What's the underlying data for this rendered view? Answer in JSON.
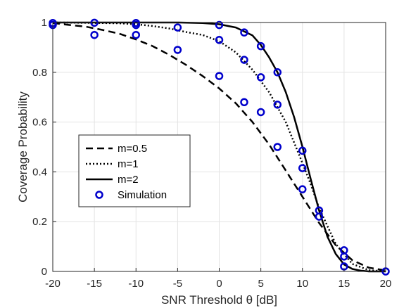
{
  "chart_data": {
    "type": "line",
    "title": "",
    "xlabel": "SNR Threshold θ [dB]",
    "ylabel": "Coverage Probability",
    "xlim": [
      -20,
      20
    ],
    "ylim": [
      0,
      1
    ],
    "x_ticks": [
      -20,
      -15,
      -10,
      -5,
      0,
      5,
      10,
      15,
      20
    ],
    "x_tick_labels": [
      "-20",
      "-15",
      "-10",
      "-5",
      "0",
      "5",
      "10",
      "15",
      "20"
    ],
    "y_ticks": [
      0,
      0.2,
      0.4,
      0.6,
      0.8,
      1
    ],
    "y_tick_labels": [
      "0",
      "0.2",
      "0.4",
      "0.6",
      "0.8",
      "1"
    ],
    "grid": true,
    "legend_position": "center-left",
    "series": [
      {
        "name": "m=0.5",
        "style": "dashed",
        "color": "#000000",
        "x": [
          -20,
          -18,
          -16,
          -14,
          -12,
          -10,
          -8,
          -6,
          -4,
          -2,
          0,
          2,
          4,
          6,
          8,
          10,
          12,
          14,
          16,
          18,
          20
        ],
        "y": [
          0.998,
          0.99,
          0.983,
          0.97,
          0.955,
          0.932,
          0.905,
          0.87,
          0.83,
          0.785,
          0.735,
          0.675,
          0.6,
          0.51,
          0.405,
          0.3,
          0.195,
          0.105,
          0.045,
          0.015,
          0.004
        ]
      },
      {
        "name": "m=1",
        "style": "dotted",
        "color": "#000000",
        "x": [
          -20,
          -16,
          -12,
          -10,
          -8,
          -6,
          -4,
          -2,
          0,
          2,
          4,
          6,
          8,
          10,
          11,
          12,
          14,
          16,
          18,
          20
        ],
        "y": [
          1.0,
          0.999,
          0.997,
          0.993,
          0.986,
          0.976,
          0.962,
          0.95,
          0.925,
          0.88,
          0.81,
          0.72,
          0.6,
          0.435,
          0.35,
          0.255,
          0.11,
          0.03,
          0.005,
          0.0
        ]
      },
      {
        "name": "m=2",
        "style": "solid",
        "color": "#000000",
        "x": [
          -20,
          -15,
          -10,
          -5,
          -2,
          0,
          2,
          4,
          5,
          6,
          7,
          8,
          9,
          10,
          11,
          12,
          13,
          14,
          15,
          16,
          17,
          18,
          20
        ],
        "y": [
          1.0,
          1.0,
          1.0,
          1.0,
          0.998,
          0.993,
          0.98,
          0.948,
          0.91,
          0.86,
          0.8,
          0.72,
          0.62,
          0.5,
          0.37,
          0.245,
          0.14,
          0.07,
          0.028,
          0.01,
          0.003,
          0.0,
          0.0
        ]
      },
      {
        "name": "Simulation",
        "style": "markers",
        "color": "#0000cc",
        "x": [
          -20,
          -20,
          -15,
          -15,
          -10,
          -10,
          -10,
          -5,
          -5,
          0,
          0,
          0,
          3,
          3,
          3,
          5,
          5,
          5,
          7,
          7,
          7,
          10,
          10,
          10,
          12,
          12,
          15,
          15,
          15,
          20
        ],
        "y": [
          0.99,
          0.998,
          0.95,
          0.999,
          0.95,
          0.99,
          0.998,
          0.89,
          0.98,
          0.785,
          0.93,
          0.99,
          0.68,
          0.85,
          0.96,
          0.64,
          0.78,
          0.905,
          0.5,
          0.67,
          0.8,
          0.33,
          0.415,
          0.485,
          0.22,
          0.245,
          0.02,
          0.06,
          0.085,
          0.0
        ]
      }
    ]
  }
}
